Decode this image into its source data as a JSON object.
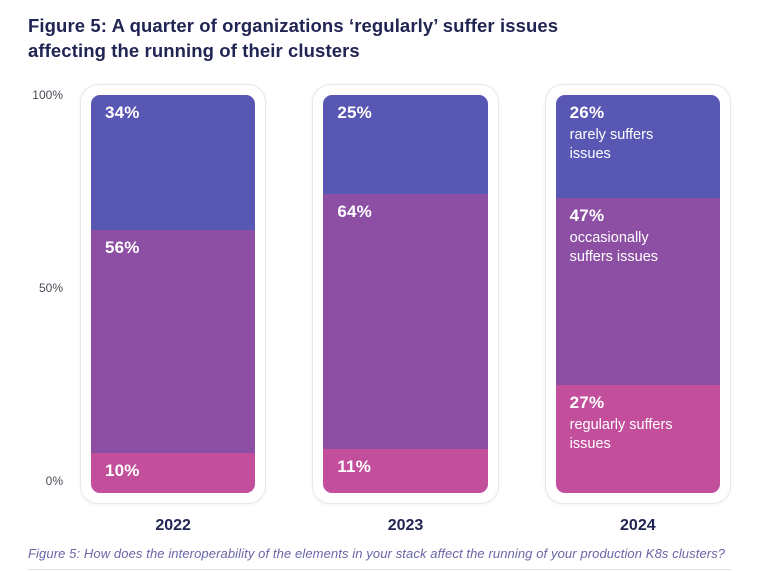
{
  "title": "Figure 5: A quarter of organizations ‘regularly’ suffer issues affecting the running of their clusters",
  "caption": "Figure 5: How does the interoperability of the elements in your stack affect the running of your production K8s clusters?",
  "colors": {
    "rarely": "#5857b4",
    "occasionally": "#8d4fa4",
    "regularly": "#c24e9c",
    "title_text": "#212553",
    "caption_text": "#6a66a8",
    "axis_text": "#4b4b58"
  },
  "chart_data": {
    "type": "bar",
    "stacked": true,
    "unit": "%",
    "categories": [
      "2022",
      "2023",
      "2024"
    ],
    "series": [
      {
        "name": "rarely suffers issues",
        "color": "#5857b4",
        "values": [
          34,
          25,
          26
        ]
      },
      {
        "name": "occasionally suffers issues",
        "color": "#8d4fa4",
        "values": [
          56,
          64,
          47
        ]
      },
      {
        "name": "regularly suffers issues",
        "color": "#c24e9c",
        "values": [
          10,
          11,
          27
        ]
      }
    ],
    "y_ticks": [
      "100%",
      "50%",
      "0%"
    ],
    "ylim": [
      0,
      100
    ],
    "grid": false,
    "legend": "segment labels shown inline on 2024 bar",
    "series_names_shown_on_category": "2024"
  }
}
